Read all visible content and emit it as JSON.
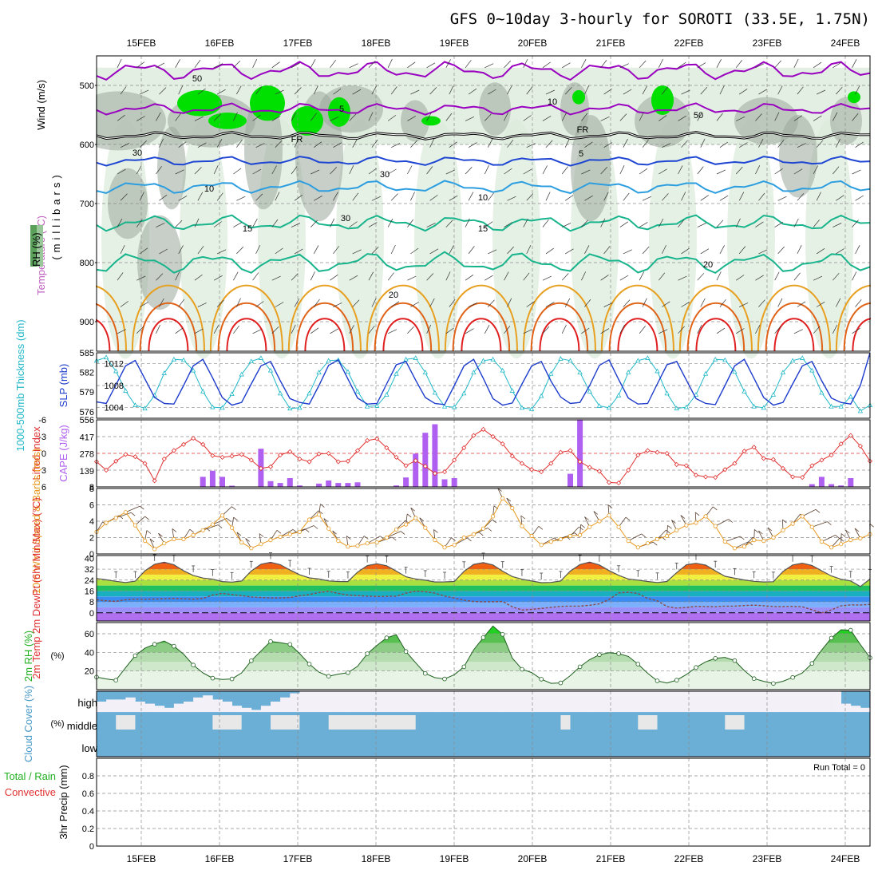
{
  "title": "GFS 0~10day 3-hourly for SOROTI (33.5E, 1.75N)",
  "dates": [
    "15FEB",
    "16FEB",
    "17FEB",
    "18FEB",
    "19FEB",
    "20FEB",
    "21FEB",
    "22FEB",
    "23FEB",
    "24FEB"
  ],
  "colors": {
    "rh_green_dark": "#00e000",
    "rh_gray": "#9aa89a",
    "rh_light": "#dcebdc",
    "temp_purple": "#9a00c0",
    "temp_blue": "#1e46d2",
    "temp_sky": "#2c9ee0",
    "temp_teal": "#18b48c",
    "temp_orange": "#e8a020",
    "temp_dkorange": "#e06418",
    "temp_red": "#e02020",
    "slp_blue": "#1e3ccc",
    "thick_cyan": "#20b8c8",
    "lifted_red": "#e03030",
    "cape_purple": "#b060f0",
    "wind_orange": "#e89a20",
    "wind_barb": "#5a4030",
    "rh2_green": "#20b020",
    "cloud_blue": "#6baed6",
    "cloud_light": "#f3f0f8",
    "clear_gray": "#e8e8e8"
  },
  "chart_data": [
    {
      "panel": "upper-air",
      "type": "heatmap",
      "ylabel": "(millibars)",
      "legend": [
        "Wind (m/s)",
        "Temperature (°C)",
        "RH (%)"
      ],
      "yticks": [
        500,
        600,
        700,
        800,
        900
      ],
      "ylim": [
        950,
        450
      ],
      "contour_labels": [
        "5",
        "FR",
        "FR",
        "5",
        "10",
        "10",
        "15",
        "15",
        "20",
        "20",
        "50",
        "50",
        "30",
        "30",
        "10",
        "30"
      ]
    },
    {
      "panel": "slp-thickness",
      "type": "line",
      "ylabel_left": "1000-500mb Thickness (dm)",
      "ylabel_right": "SLP (mb)",
      "yticks_left": [
        576,
        579,
        582,
        585
      ],
      "yticks_right": [
        1004,
        1008,
        1012
      ],
      "ylim_left": [
        575,
        585
      ],
      "ylim_right": [
        1002,
        1014
      ],
      "series": [
        {
          "name": "SLP (mb)",
          "values": [
            1005.0,
            1004.7,
            1008.1,
            1011.6,
            1012.6,
            1009.2,
            1005.8,
            1004.7,
            1004.6,
            1008.0,
            1011.6,
            1012.8,
            1009.4,
            1005.8,
            1004.4,
            1004.9,
            1008.3,
            1011.6,
            1012.4,
            1008.9,
            1005.6,
            1004.9,
            1004.6,
            1008.0,
            1011.7,
            1012.7,
            1009.2,
            1005.7,
            1004.6,
            1004.7,
            1008.3,
            1011.8,
            1012.4,
            1009.0,
            1005.8,
            1004.7,
            1004.5,
            1008.0,
            1011.6,
            1012.8,
            1009.3,
            1005.6,
            1004.4,
            1004.8,
            1008.3,
            1011.6,
            1012.4,
            1008.8,
            1005.9,
            1004.7,
            1004.9,
            1008.0,
            1011.7,
            1012.7,
            1009.1,
            1005.7,
            1004.6,
            1004.7,
            1008.3,
            1011.8,
            1012.4,
            1009.0,
            1005.6,
            1004.7,
            1004.5,
            1008.0,
            1011.6,
            1012.8,
            1009.3,
            1005.8,
            1004.4,
            1004.9,
            1008.3,
            1011.6,
            1012.4,
            1008.9,
            1005.7,
            1004.9,
            1004.6,
            1008.0,
            1014.0
          ]
        },
        {
          "name": "1000-500mb Thickness (dm)",
          "values": [
            583.8,
            584.3,
            582.2,
            579.2,
            577.0,
            576.5,
            578.5,
            581.9,
            584.0,
            583.9,
            582.3,
            579.1,
            576.7,
            576.6,
            578.7,
            581.7,
            583.7,
            584.2,
            582.3,
            578.8,
            576.5,
            576.6,
            578.8,
            582.0,
            583.8,
            583.9,
            582.1,
            579.1,
            576.8,
            576.9,
            578.6,
            581.8,
            584.0,
            584.2,
            582.0,
            578.9,
            576.8,
            576.7,
            578.8,
            582.0,
            583.8,
            584.0,
            582.3,
            579.2,
            576.6,
            576.4,
            578.4,
            581.8,
            584.1,
            583.8,
            582.0,
            579.1,
            576.9,
            576.6,
            578.5,
            582.0,
            583.8,
            584.2,
            582.2,
            578.8,
            576.5,
            576.7,
            578.6,
            581.8,
            584.0,
            583.9,
            582.1,
            579.1,
            576.8,
            576.6,
            578.6,
            582.0,
            583.8,
            584.2,
            582.3,
            578.9,
            576.8,
            576.8,
            578.3,
            576.1,
            577.0
          ]
        }
      ]
    },
    {
      "panel": "lifted-cape",
      "type": "bar",
      "ylabel_left": "Lifted Index",
      "ylabel_right": "CAPE (J/kg)",
      "yticks_left": [
        -6,
        -3,
        0,
        3,
        6
      ],
      "yticks_right": [
        8,
        139,
        278,
        417,
        556
      ],
      "ylim_left": [
        6,
        -6
      ],
      "ylim_right": [
        8,
        556
      ],
      "series": [
        {
          "name": "Lifted Index",
          "values": [
            1.5,
            3.0,
            1.4,
            0.2,
            0.6,
            1.8,
            4.9,
            1.0,
            -0.5,
            -1.6,
            -2.7,
            -1.6,
            0.4,
            0.7,
            0.5,
            0.2,
            1.2,
            2.7,
            2.4,
            0.3,
            -0.3,
            1.0,
            1.5,
            0.1,
            0.0,
            1.5,
            1.4,
            -0.5,
            -2.3,
            -2.6,
            -1.0,
            0.7,
            2.2,
            1.3,
            2.3,
            3.6,
            3.3,
            1.2,
            -1.0,
            -3.2,
            -4.3,
            -3.0,
            -1.7,
            0.5,
            1.8,
            2.9,
            3.3,
            1.8,
            -0.2,
            -0.5,
            1.5,
            2.5,
            3.2,
            5.2,
            5.3,
            3.0,
            0.3,
            -0.5,
            -0.2,
            0.0,
            2.0,
            2.2,
            3.9,
            4.2,
            4.3,
            2.9,
            1.8,
            -0.4,
            -1.1,
            0.9,
            1.1,
            2.7,
            4.2,
            4.3,
            2.2,
            1.2,
            0.3,
            -1.7,
            -3.2,
            -1.3,
            1.4
          ]
        },
        {
          "name": "CAPE (J/kg)",
          "values": [
            0,
            0,
            0,
            0,
            0,
            0,
            0,
            0,
            8,
            0,
            0,
            90,
            140,
            90,
            18,
            0,
            0,
            320,
            55,
            40,
            80,
            20,
            0,
            35,
            60,
            40,
            40,
            45,
            0,
            0,
            0,
            20,
            85,
            280,
            450,
            520,
            70,
            80,
            0,
            0,
            0,
            0,
            0,
            0,
            0,
            0,
            0,
            0,
            0,
            115,
            560,
            0,
            0,
            0,
            0,
            0,
            0,
            0,
            0,
            0,
            0,
            0,
            0,
            0,
            0,
            0,
            0,
            0,
            0,
            0,
            0,
            10,
            0,
            8,
            30,
            90,
            30,
            20,
            80,
            0,
            0
          ]
        }
      ]
    },
    {
      "panel": "wind-10m",
      "type": "line",
      "ylabel": "10m Wind Speed & Barbs (m/s)",
      "yticks": [
        0,
        2,
        4,
        6,
        8
      ],
      "ylim": [
        0,
        8
      ],
      "series": [
        {
          "name": "10m Wind Speed",
          "values": [
            2.7,
            3.8,
            4.4,
            5.1,
            3.5,
            1.6,
            0.6,
            1.3,
            1.8,
            1.8,
            2.3,
            2.9,
            3.6,
            4.7,
            3.2,
            1.4,
            0.7,
            1.2,
            1.7,
            2.1,
            2.4,
            2.7,
            4.2,
            4.8,
            3.1,
            1.6,
            0.9,
            1.0,
            1.3,
            1.4,
            2.0,
            3.0,
            3.6,
            4.4,
            3.2,
            1.7,
            0.8,
            1.1,
            2.0,
            2.4,
            3.1,
            4.6,
            6.8,
            5.6,
            3.4,
            2.2,
            1.1,
            1.5,
            1.8,
            2.2,
            2.3,
            3.3,
            4.0,
            4.7,
            3.3,
            1.6,
            0.8,
            1.3,
            1.8,
            2.2,
            2.9,
            3.5,
            3.8,
            4.6,
            3.4,
            1.5,
            0.7,
            0.9,
            1.7,
            1.6,
            2.0,
            2.9,
            3.7,
            4.6,
            3.3,
            1.5,
            0.8,
            1.2,
            1.7,
            1.9,
            2.4
          ]
        }
      ]
    },
    {
      "panel": "temp-2m",
      "type": "area",
      "ylabel": "2m Temp 2m DewPt (6hr Min/Max) (°C)",
      "yticks": [
        0,
        8,
        16,
        24,
        32,
        40
      ],
      "ylim": [
        -6,
        42
      ],
      "series": [
        {
          "name": "2m Temp",
          "values": [
            25.2,
            24.2,
            23.1,
            22.2,
            23.2,
            30.8,
            35.6,
            37.1,
            35.2,
            30.8,
            27.4,
            25.5,
            24.7,
            22.9,
            22.5,
            23.3,
            30.7,
            35.6,
            37.0,
            35.3,
            31.4,
            27.9,
            25.6,
            24.8,
            23.4,
            23.0,
            22.9,
            29.8,
            34.6,
            36.0,
            34.5,
            30.6,
            26.4,
            24.8,
            23.9,
            22.6,
            22.7,
            23.0,
            30.4,
            35.5,
            36.8,
            35.1,
            30.5,
            26.6,
            24.6,
            23.3,
            22.1,
            22.3,
            23.3,
            30.6,
            35.4,
            37.2,
            35.1,
            31.0,
            27.5,
            24.8,
            24.0,
            23.0,
            22.2,
            23.0,
            29.5,
            35.2,
            36.3,
            35.0,
            30.8,
            26.8,
            25.4,
            24.1,
            23.1,
            22.6,
            22.8,
            30.3,
            35.1,
            36.4,
            34.7,
            30.8,
            27.0,
            24.6,
            23.4,
            19.3,
            24.8
          ]
        },
        {
          "name": "2m DewPt",
          "values": [
            9.6,
            8.8,
            8.4,
            9.6,
            10.1,
            10.0,
            10.1,
            10.3,
            10.5,
            10.3,
            10.0,
            10.5,
            13.1,
            14.2,
            13.4,
            12.6,
            11.7,
            11.2,
            10.9,
            11.0,
            11.2,
            12.5,
            13.4,
            14.9,
            15.8,
            14.2,
            13.1,
            12.6,
            12.2,
            12.0,
            12.1,
            12.2,
            14.4,
            15.9,
            15.5,
            14.4,
            12.3,
            10.8,
            9.3,
            8.3,
            8.1,
            8.1,
            8.3,
            4.4,
            2.0,
            2.5,
            3.2,
            4.0,
            4.7,
            4.9,
            4.9,
            5.5,
            6.6,
            9.8,
            14.6,
            15.1,
            14.2,
            10.5,
            8.8,
            4.6,
            3.5,
            3.9,
            4.7,
            4.6,
            4.5,
            4.9,
            4.9,
            5.3,
            5.6,
            5.2,
            4.6,
            4.6,
            4.7,
            4.5,
            2.2,
            0.0,
            2.1,
            5.1,
            5.8,
            5.7,
            6.2
          ]
        }
      ]
    },
    {
      "panel": "rh-2m",
      "type": "area",
      "ylabel": "2m RH (%)",
      "yticks": [
        20,
        40,
        60
      ],
      "ylim": [
        0,
        72
      ],
      "series": [
        {
          "name": "2m RH",
          "values": [
            13.5,
            11.5,
            10.1,
            23.5,
            36.5,
            44.5,
            48.8,
            52.1,
            46.6,
            38.1,
            26.4,
            18.0,
            12.3,
            11.0,
            11.5,
            18.0,
            31.0,
            41.4,
            51.7,
            50.5,
            48.6,
            38.7,
            27.5,
            18.8,
            14.4,
            16.6,
            18.2,
            25.0,
            38.6,
            47.6,
            55.6,
            59.0,
            41.0,
            28.9,
            17.4,
            12.9,
            11.5,
            16.0,
            24.5,
            42.8,
            55.8,
            68.3,
            59.3,
            33.9,
            21.9,
            18.3,
            11.2,
            6.8,
            7.2,
            15.0,
            24.5,
            32.2,
            37.5,
            39.6,
            38.7,
            35.7,
            27.4,
            17.6,
            9.4,
            7.1,
            10.2,
            16.2,
            23.8,
            29.8,
            33.6,
            34.6,
            31.2,
            20.5,
            11.8,
            8.9,
            6.6,
            9.0,
            13.1,
            17.9,
            28.1,
            42.5,
            55.4,
            64.3,
            63.8,
            48.4,
            34.2
          ]
        }
      ]
    },
    {
      "panel": "cloud-cover",
      "type": "heatmap",
      "ylabel": "Cloud Cover (%)",
      "layers": [
        "high",
        "middle",
        "low"
      ]
    },
    {
      "panel": "precip",
      "type": "bar",
      "ylabel": "3hr Precip (mm)",
      "legend": [
        "Total / Rain",
        "Convective"
      ],
      "yticks": [
        0,
        0.2,
        0.4,
        0.6,
        0.8
      ],
      "ylim": [
        0,
        1.0
      ],
      "annotation": "Run Total = 0",
      "values": [
        0,
        0,
        0,
        0,
        0,
        0,
        0,
        0,
        0,
        0
      ]
    }
  ]
}
